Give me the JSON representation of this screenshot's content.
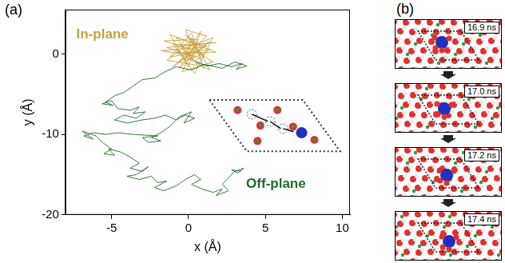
{
  "chart_data": {
    "type": "line",
    "x_label": "x (Å)",
    "y_label": "y (Å)",
    "xlim": [
      -8,
      10.5
    ],
    "xticks": [
      -5,
      0,
      5,
      10
    ],
    "ylim": [
      -20,
      5.5
    ],
    "yticks": [
      -20,
      -10,
      0
    ],
    "grid": false,
    "series": [
      {
        "name": "Off-plane",
        "color": "#1d6a2c",
        "x": [
          0.5,
          1.2,
          2.0,
          2.8,
          3.5,
          3.1,
          3.8,
          3.0,
          2.2,
          1.0,
          0.2,
          -0.8,
          -1.5,
          -2.2,
          -3.0,
          -3.6,
          -4.2,
          -4.8,
          -5.4,
          -4.9,
          -5.6,
          -5.0,
          -4.6,
          -3.8,
          -3.2,
          -3.6,
          -2.8,
          -3.4,
          -4.2,
          -4.8,
          -4.0,
          -3.0,
          -2.2,
          -1.5,
          -0.8,
          -0.2,
          0.4,
          -0.3,
          0.2,
          -0.6,
          -1.2,
          -1.8,
          -2.4,
          -1.8,
          -2.6,
          -3.0,
          -2.0,
          -3.6,
          -4.6,
          -5.4,
          -6.2,
          -6.8,
          -6.2,
          -6.9,
          -6.0,
          -5.6,
          -5.0,
          -5.5,
          -4.8,
          -5.2,
          -4.4,
          -3.8,
          -3.2,
          -3.8,
          -3.0,
          -2.6,
          -3.4,
          -4.0,
          -3.2,
          -2.4,
          -2.0,
          -1.4,
          -2.2,
          -1.6,
          -0.8,
          -0.2,
          0.4,
          0.8,
          0.2,
          0.9,
          1.6,
          2.2,
          1.8,
          2.6,
          2.2,
          2.6,
          3.0,
          3.6,
          3.2,
          2.8,
          3.4
        ],
        "y": [
          -1.0,
          -1.5,
          -1.2,
          -1.6,
          -1.2,
          -1.9,
          -1.5,
          -1.0,
          -1.8,
          -1.3,
          -2.0,
          -1.6,
          -2.2,
          -3.0,
          -3.2,
          -4.0,
          -4.8,
          -5.2,
          -6.0,
          -6.4,
          -6.2,
          -5.8,
          -6.8,
          -7.0,
          -6.6,
          -7.4,
          -7.2,
          -8.0,
          -7.6,
          -8.2,
          -8.6,
          -8.2,
          -8.0,
          -7.6,
          -8.2,
          -7.6,
          -8.0,
          -8.6,
          -7.2,
          -7.8,
          -9.0,
          -9.8,
          -10.4,
          -10.8,
          -11.0,
          -10.4,
          -10.2,
          -10.0,
          -9.8,
          -10.0,
          -9.8,
          -10.2,
          -10.6,
          -9.6,
          -10.2,
          -11.0,
          -11.8,
          -12.4,
          -12.6,
          -11.8,
          -12.2,
          -12.8,
          -13.6,
          -14.2,
          -14.6,
          -14.0,
          -15.0,
          -15.2,
          -15.6,
          -15.2,
          -16.0,
          -15.8,
          -16.6,
          -17.0,
          -16.4,
          -15.6,
          -15.0,
          -15.6,
          -16.2,
          -16.8,
          -17.2,
          -16.8,
          -17.6,
          -17.0,
          -16.2,
          -15.4,
          -14.6,
          -14.2,
          -14.8,
          -14.4,
          -14.6
        ]
      },
      {
        "name": "In-plane",
        "color": "#c8a040",
        "x": [
          0,
          0.6,
          -0.8,
          0.4,
          1.4,
          -1.2,
          0.2,
          1.0,
          -0.6,
          1.8,
          -1.4,
          0.8,
          -0.2,
          1.2,
          -1.0,
          0.4,
          1.6,
          -0.4,
          0.6,
          -1.6,
          1.0,
          -0.2,
          0.2,
          1.4,
          -0.8,
          1.8,
          -1.2,
          0.0,
          0.8,
          -0.6,
          1.2,
          -1.0,
          0.4,
          1.6,
          -0.4,
          0.6,
          -1.4,
          0.0,
          1.0,
          -0.2,
          0.8,
          -1.8,
          0.2,
          1.4,
          -0.6,
          0.4
        ],
        "y": [
          0,
          1.2,
          2.0,
          -1.0,
          0.6,
          -0.4,
          2.6,
          -1.8,
          1.0,
          1.4,
          0.8,
          -0.6,
          3.0,
          2.2,
          -1.6,
          0.4,
          -1.0,
          -2.2,
          1.8,
          1.6,
          0.0,
          -0.8,
          2.0,
          -2.0,
          0.2,
          0.2,
          2.4,
          -1.6,
          2.8,
          -1.0,
          1.0,
          1.2,
          -2.4,
          2.0,
          0.6,
          -1.4,
          -0.8,
          1.4,
          -0.4,
          2.4,
          0.8,
          0.4,
          -0.2,
          1.6,
          -1.8,
          1.0
        ]
      }
    ]
  },
  "panels": {
    "a": "(a)",
    "b": "(b)"
  },
  "snapshots": [
    "16.9 ns",
    "17.0 ns",
    "17.2 ns",
    "17.4 ns"
  ]
}
